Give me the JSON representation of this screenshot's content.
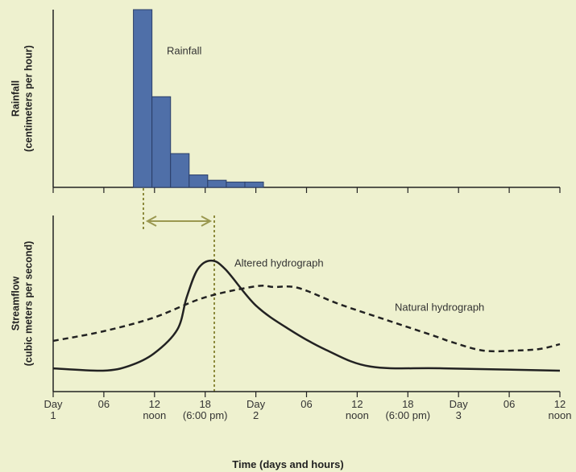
{
  "chart_data": [
    {
      "type": "histogram",
      "ylabel": [
        "Rainfall",
        "(centimeters per hour)"
      ],
      "annotation": "Rainfall",
      "bins": [
        9.5,
        11.7,
        13.9,
        16.1,
        18.3,
        20.5,
        22.7,
        24.9
      ],
      "values": [
        10,
        5.1,
        1.9,
        0.7,
        0.4,
        0.3,
        0.3
      ],
      "color": "#4f6fa8",
      "xlim": [
        0,
        60
      ],
      "ylim": [
        0,
        10
      ]
    },
    {
      "type": "line",
      "ylabel": [
        "Streamflow",
        "(cubic meters per second)"
      ],
      "xlabel": "Time (days and hours)",
      "xlim": [
        0,
        60
      ],
      "ylim": [
        0,
        10
      ],
      "xticks": [
        {
          "value": 0,
          "label": "Day\n1"
        },
        {
          "value": 6,
          "label": "06"
        },
        {
          "value": 12,
          "label": "12\nnoon"
        },
        {
          "value": 18,
          "label": "18\n(6:00 pm)"
        },
        {
          "value": 24,
          "label": "Day\n2"
        },
        {
          "value": 30,
          "label": "06"
        },
        {
          "value": 36,
          "label": "12\nnoon"
        },
        {
          "value": 42,
          "label": "18\n(6:00 pm)"
        },
        {
          "value": 48,
          "label": "Day\n3"
        },
        {
          "value": 54,
          "label": "06"
        },
        {
          "value": 60,
          "label": "12\nnoon"
        }
      ],
      "series": [
        {
          "name": "Altered hydrograph",
          "color": "#222222",
          "linestyle": "solid",
          "x": [
            0,
            5.9,
            9.0,
            11.9,
            14.7,
            15.8,
            17.1,
            18.7,
            20.4,
            24.0,
            28.0,
            32.3,
            37.6,
            46.2,
            60
          ],
          "values": [
            1.32,
            1.19,
            1.46,
            2.15,
            3.52,
            5.34,
            6.94,
            7.44,
            6.94,
            4.89,
            3.52,
            2.37,
            1.42,
            1.32,
            1.19
          ]
        },
        {
          "name": "Natural hydrograph",
          "color": "#222222",
          "linestyle": "dashed",
          "x": [
            0,
            5.9,
            11.9,
            17.9,
            24.0,
            26.1,
            29.0,
            33.8,
            39.5,
            45.2,
            47.1,
            50.9,
            54.7,
            57.6,
            60
          ],
          "values": [
            2.88,
            3.42,
            4.2,
            5.34,
            5.98,
            5.94,
            5.89,
            4.98,
            4.06,
            3.15,
            2.83,
            2.33,
            2.33,
            2.42,
            2.69
          ]
        }
      ]
    }
  ]
}
